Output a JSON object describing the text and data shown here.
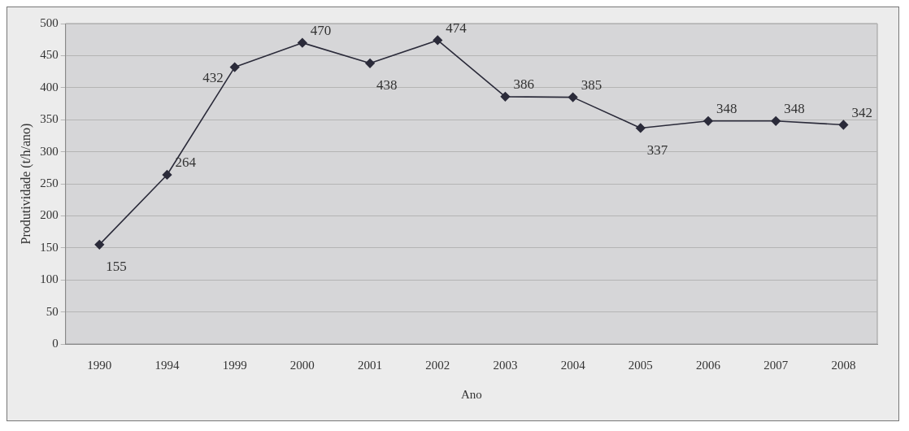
{
  "chart_data": {
    "type": "line",
    "xlabel": "Ano",
    "ylabel": "Produtividade (t/h/ano)",
    "categories": [
      "1990",
      "1994",
      "1999",
      "2000",
      "2001",
      "2002",
      "2003",
      "2004",
      "2005",
      "2006",
      "2007",
      "2008"
    ],
    "series": [
      {
        "color": "#2b2b3a",
        "values": [
          155,
          264,
          432,
          470,
          438,
          474,
          386,
          385,
          337,
          348,
          348,
          342
        ]
      }
    ],
    "ylim": [
      0,
      500
    ],
    "yticks": [
      0,
      50,
      100,
      150,
      200,
      250,
      300,
      350,
      400,
      450,
      500
    ],
    "grid": "y",
    "legend": false,
    "marker": "diamond",
    "line_style": "solid",
    "data_labels": true
  }
}
